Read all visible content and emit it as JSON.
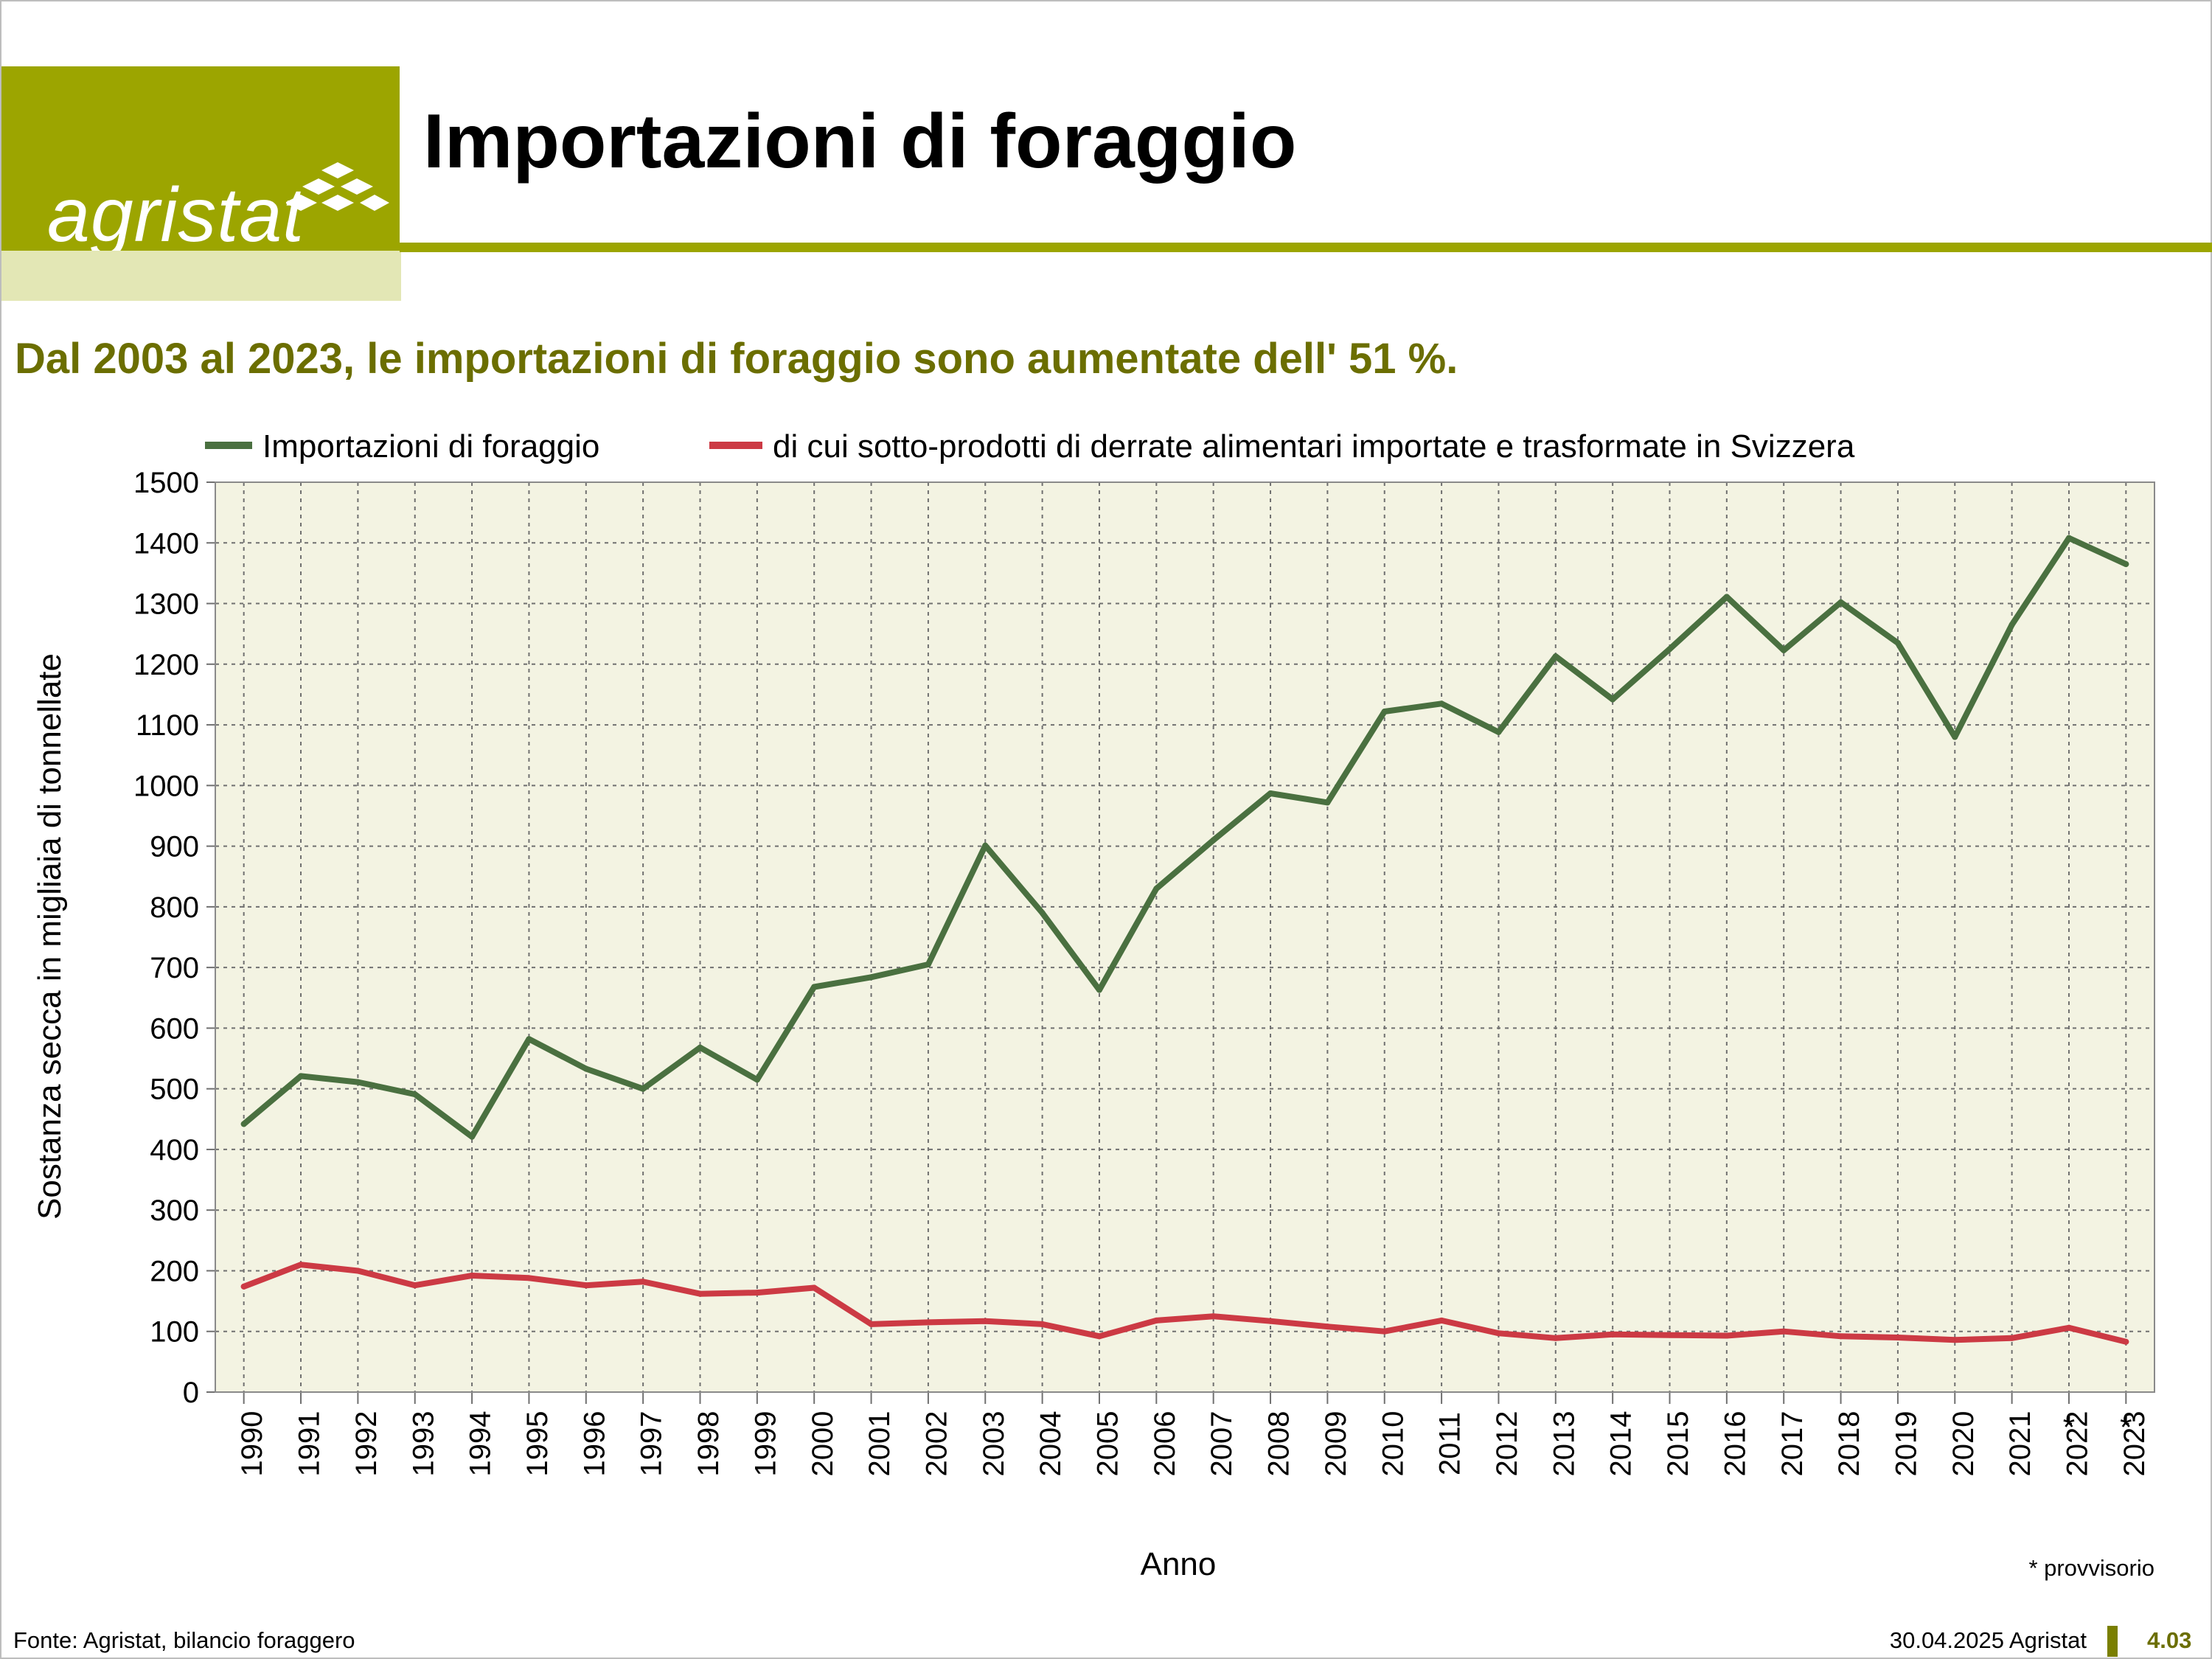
{
  "header": {
    "logo_text": "agristat",
    "title": "Importazioni di foraggio",
    "subtitle": "Dal 2003 al 2023, le importazioni di foraggio sono aumentate dell' 51 %."
  },
  "footer": {
    "source": "Fonte: Agristat, bilancio foraggero",
    "date": "30.04.2025 Agristat",
    "page": "4.03"
  },
  "colors": {
    "brand": "#9ca500",
    "brand_light": "#e3e7b5",
    "subtitle": "#6b6e00",
    "plot_bg": "#f3f3e2",
    "series_green": "#4a7040",
    "series_red": "#cc3a44"
  },
  "chart_data": {
    "type": "line",
    "title": "",
    "xlabel": "Anno",
    "ylabel": "Sostanza secca in migliaia di tonnellate",
    "ylim": [
      0,
      1500
    ],
    "yticks": [
      0,
      100,
      200,
      300,
      400,
      500,
      600,
      700,
      800,
      900,
      1000,
      1100,
      1200,
      1300,
      1400,
      1500
    ],
    "grid": true,
    "legend_position": "top",
    "categories": [
      "1990",
      "1991",
      "1992",
      "1993",
      "1994",
      "1995",
      "1996",
      "1997",
      "1998",
      "1999",
      "2000",
      "2001",
      "2002",
      "2003",
      "2004",
      "2005",
      "2006",
      "2007",
      "2008",
      "2009",
      "2010",
      "2011",
      "2012",
      "2013",
      "2014",
      "2015",
      "2016",
      "2017",
      "2018",
      "2019",
      "2020",
      "2021",
      "2022",
      "2023"
    ],
    "provisional_marker": "*",
    "provisional_categories": [
      "2022",
      "2023"
    ],
    "note": "* provvisorio",
    "series": [
      {
        "name": "Importazioni di foraggio",
        "color": "#4a7040",
        "values": [
          442,
          521,
          511,
          491,
          421,
          582,
          533,
          500,
          568,
          515,
          668,
          684,
          705,
          901,
          790,
          663,
          830,
          910,
          987,
          972,
          1122,
          1135,
          1088,
          1213,
          1142,
          1225,
          1311,
          1223,
          1302,
          1235,
          1080,
          1265,
          1408,
          1365
        ]
      },
      {
        "name": "di cui sotto-prodotti di derrate alimentari importate e trasformate in Svizzera",
        "color": "#cc3a44",
        "values": [
          174,
          210,
          200,
          176,
          192,
          188,
          176,
          182,
          162,
          164,
          172,
          112,
          115,
          117,
          112,
          92,
          118,
          125,
          117,
          108,
          100,
          118,
          97,
          89,
          95,
          94,
          93,
          100,
          92,
          90,
          86,
          89,
          106,
          83
        ]
      }
    ]
  }
}
